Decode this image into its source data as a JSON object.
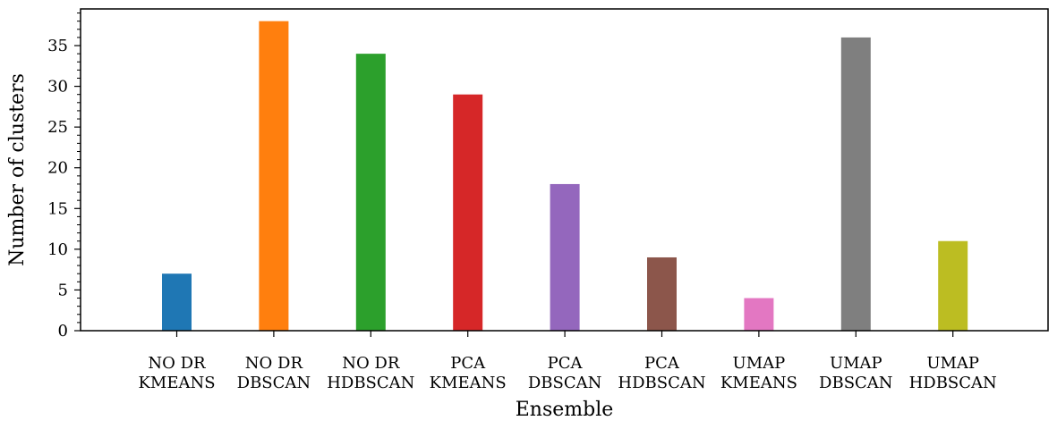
{
  "chart_data": {
    "type": "bar",
    "categories": [
      [
        "NO DR",
        "KMEANS"
      ],
      [
        "NO DR",
        "DBSCAN"
      ],
      [
        "NO DR",
        "HDBSCAN"
      ],
      [
        "PCA",
        "KMEANS"
      ],
      [
        "PCA",
        "DBSCAN"
      ],
      [
        "PCA",
        "HDBSCAN"
      ],
      [
        "UMAP",
        "KMEANS"
      ],
      [
        "UMAP",
        "DBSCAN"
      ],
      [
        "UMAP",
        "HDBSCAN"
      ]
    ],
    "values": [
      7,
      38,
      34,
      29,
      18,
      9,
      4,
      36,
      11
    ],
    "colors": [
      "#1f77b4",
      "#ff7f0e",
      "#2ca02c",
      "#d62728",
      "#9467bd",
      "#8c564b",
      "#e377c2",
      "#7f7f7f",
      "#bcbd22"
    ],
    "xlabel": "Ensemble",
    "ylabel": "Number of clusters",
    "ylim": [
      0,
      39.5
    ],
    "yticks": [
      0,
      5,
      10,
      15,
      20,
      25,
      30,
      35
    ],
    "y_minor_step": 1,
    "grid": false,
    "legend": false
  }
}
